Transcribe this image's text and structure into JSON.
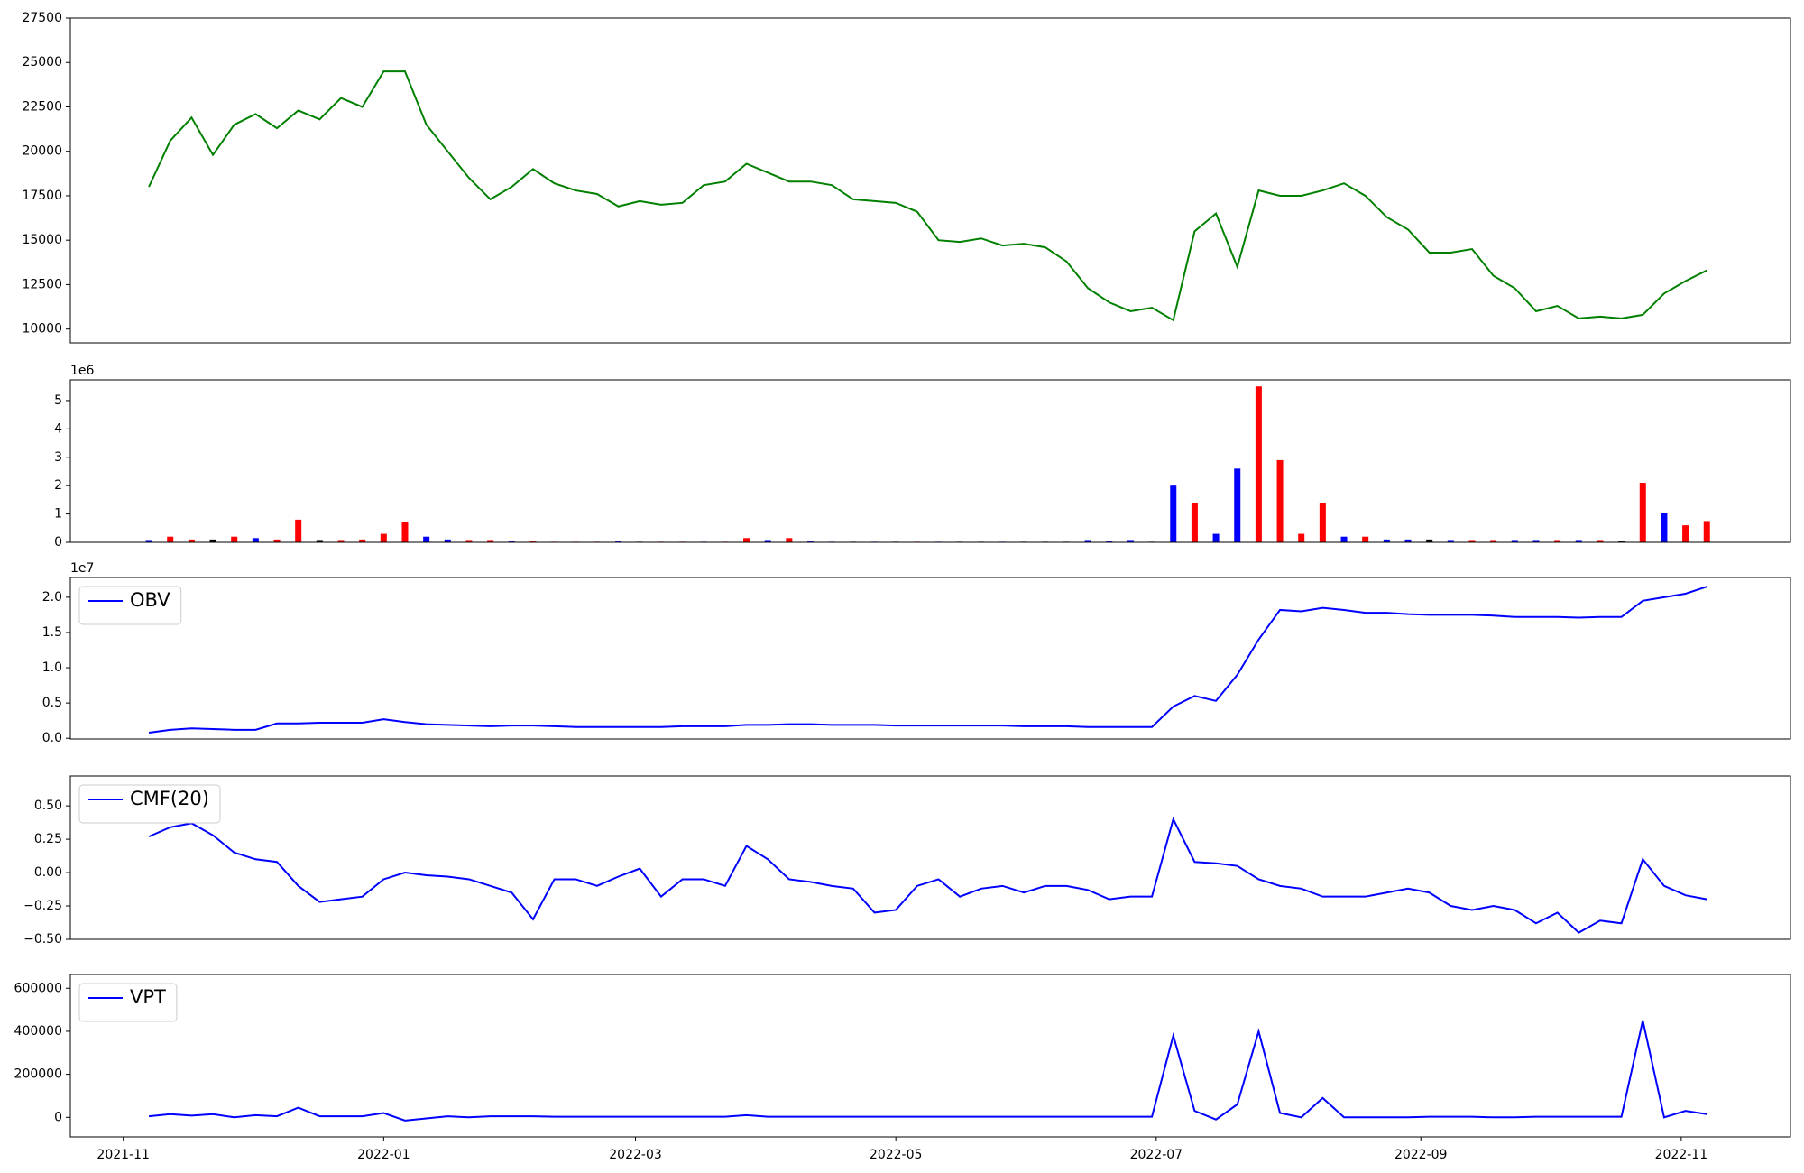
{
  "chart_data": [
    {
      "type": "line",
      "x": [
        18938,
        18943,
        18948,
        18953,
        18958,
        18963,
        18968,
        18973,
        18978,
        18983,
        18988,
        18993,
        18998,
        19003,
        19008,
        19013,
        19018,
        19023,
        19028,
        19033,
        19038,
        19043,
        19048,
        19053,
        19058,
        19063,
        19068,
        19073,
        19078,
        19083,
        19088,
        19093,
        19098,
        19103,
        19108,
        19113,
        19118,
        19123,
        19128,
        19133,
        19138,
        19143,
        19148,
        19153,
        19158,
        19163,
        19168,
        19173,
        19178,
        19183,
        19188,
        19193,
        19198,
        19203,
        19208,
        19213,
        19218,
        19223,
        19228,
        19233,
        19238,
        19243,
        19248,
        19253,
        19258,
        19263,
        19268,
        19273,
        19278,
        19283,
        19288,
        19293,
        19298,
        19303
      ],
      "series": [
        {
          "color": "#008000",
          "values": [
            18000,
            20600,
            21900,
            19800,
            21500,
            22100,
            21300,
            22300,
            21800,
            23000,
            22500,
            24500,
            24500,
            21500,
            20000,
            18500,
            17300,
            18000,
            19000,
            18200,
            17800,
            17600,
            16900,
            17200,
            17000,
            17100,
            18100,
            18300,
            19300,
            18800,
            18300,
            18300,
            18100,
            17300,
            17200,
            17100,
            16600,
            15000,
            14900,
            15100,
            14700,
            14800,
            14600,
            13800,
            12300,
            11500,
            11000,
            11200,
            10500,
            15500,
            16500,
            13500,
            17800,
            17500,
            17500,
            17800,
            18200,
            17500,
            16300,
            15600,
            14300,
            14300,
            14500,
            13000,
            12300,
            11000,
            11300,
            10600,
            10700,
            10600,
            10800,
            12000,
            12700,
            13300
          ]
        }
      ],
      "xlim": [
        18919.6,
        19322.6
      ],
      "ylim": [
        9222,
        27500
      ],
      "yticks": [
        10000,
        12500,
        15000,
        17500,
        20000,
        22500,
        25000,
        27500
      ]
    },
    {
      "type": "bar",
      "x": [
        18938,
        18943,
        18948,
        18953,
        18958,
        18963,
        18968,
        18973,
        18978,
        18983,
        18988,
        18993,
        18998,
        19003,
        19008,
        19013,
        19018,
        19023,
        19028,
        19033,
        19038,
        19043,
        19048,
        19053,
        19058,
        19063,
        19068,
        19073,
        19078,
        19083,
        19088,
        19093,
        19098,
        19103,
        19108,
        19113,
        19118,
        19123,
        19128,
        19133,
        19138,
        19143,
        19148,
        19153,
        19158,
        19163,
        19168,
        19173,
        19178,
        19183,
        19188,
        19193,
        19198,
        19203,
        19208,
        19213,
        19218,
        19223,
        19228,
        19233,
        19238,
        19243,
        19248,
        19253,
        19258,
        19263,
        19268,
        19273,
        19278,
        19283,
        19288,
        19293,
        19298,
        19303
      ],
      "values": [
        0.05,
        0.2,
        0.1,
        0.1,
        0.2,
        0.15,
        0.1,
        0.8,
        0.05,
        0.05,
        0.1,
        0.3,
        0.7,
        0.2,
        0.1,
        0.05,
        0.05,
        0.03,
        0.03,
        0.02,
        0.02,
        0.02,
        0.03,
        0.02,
        0.02,
        0.02,
        0.02,
        0.02,
        0.15,
        0.05,
        0.15,
        0.03,
        0.02,
        0.02,
        0.02,
        0.02,
        0.02,
        0.02,
        0.02,
        0.02,
        0.02,
        0.02,
        0.02,
        0.02,
        0.05,
        0.03,
        0.05,
        0.02,
        2.0,
        1.4,
        0.3,
        2.6,
        5.5,
        2.9,
        0.3,
        1.4,
        0.2,
        0.2,
        0.1,
        0.1,
        0.1,
        0.05,
        0.05,
        0.05,
        0.05,
        0.05,
        0.05,
        0.05,
        0.05,
        0.03,
        2.1,
        1.05,
        0.6,
        0.75
      ],
      "colors": [
        "blue",
        "red",
        "red",
        "black",
        "red",
        "blue",
        "red",
        "red",
        "black",
        "red",
        "red",
        "red",
        "red",
        "blue",
        "blue",
        "red",
        "red",
        "blue",
        "red",
        "red",
        "red",
        "red",
        "blue",
        "black",
        "red",
        "red",
        "blue",
        "red",
        "red",
        "blue",
        "red",
        "blue",
        "blue",
        "black",
        "blue",
        "black",
        "red",
        "blue",
        "black",
        "black",
        "blue",
        "black",
        "black",
        "black",
        "blue",
        "blue",
        "blue",
        "black",
        "blue",
        "red",
        "blue",
        "blue",
        "red",
        "red",
        "red",
        "red",
        "blue",
        "red",
        "blue",
        "blue",
        "black",
        "blue",
        "red",
        "red",
        "blue",
        "blue",
        "red",
        "blue",
        "red",
        "black",
        "red",
        "blue",
        "red",
        "red"
      ],
      "offset_label": "1e6",
      "xlim": [
        18919.6,
        19322.6
      ],
      "ylim": [
        0,
        5.73
      ],
      "yticks": [
        0,
        1,
        2,
        3,
        4,
        5
      ]
    },
    {
      "type": "line",
      "x": [
        18938,
        18943,
        18948,
        18953,
        18958,
        18963,
        18968,
        18973,
        18978,
        18983,
        18988,
        18993,
        18998,
        19003,
        19008,
        19013,
        19018,
        19023,
        19028,
        19033,
        19038,
        19043,
        19048,
        19053,
        19058,
        19063,
        19068,
        19073,
        19078,
        19083,
        19088,
        19093,
        19098,
        19103,
        19108,
        19113,
        19118,
        19123,
        19128,
        19133,
        19138,
        19143,
        19148,
        19153,
        19158,
        19163,
        19168,
        19173,
        19178,
        19183,
        19188,
        19193,
        19198,
        19203,
        19208,
        19213,
        19218,
        19223,
        19228,
        19233,
        19238,
        19243,
        19248,
        19253,
        19258,
        19263,
        19268,
        19273,
        19278,
        19283,
        19288,
        19293,
        19298,
        19303
      ],
      "series": [
        {
          "name": "OBV",
          "color": "#0000ff",
          "values": [
            0.08,
            0.12,
            0.14,
            0.13,
            0.12,
            0.12,
            0.21,
            0.21,
            0.22,
            0.22,
            0.22,
            0.27,
            0.23,
            0.2,
            0.19,
            0.18,
            0.17,
            0.18,
            0.18,
            0.17,
            0.16,
            0.16,
            0.16,
            0.16,
            0.16,
            0.17,
            0.17,
            0.17,
            0.19,
            0.19,
            0.2,
            0.2,
            0.19,
            0.19,
            0.19,
            0.18,
            0.18,
            0.18,
            0.18,
            0.18,
            0.18,
            0.17,
            0.17,
            0.17,
            0.16,
            0.16,
            0.16,
            0.16,
            0.45,
            0.6,
            0.53,
            0.9,
            1.4,
            1.82,
            1.8,
            1.85,
            1.82,
            1.78,
            1.78,
            1.76,
            1.75,
            1.75,
            1.75,
            1.74,
            1.72,
            1.72,
            1.72,
            1.71,
            1.72,
            1.72,
            1.95,
            2.0,
            2.05,
            2.15
          ]
        }
      ],
      "offset_label": "1e7",
      "xlim": [
        18919.6,
        19322.6
      ],
      "ylim": [
        -0.01,
        2.28
      ],
      "yticks": [
        {
          "value": 0,
          "label": "0.0"
        },
        0.5,
        {
          "value": 1,
          "label": "1.0"
        },
        1.5,
        {
          "value": 2,
          "label": "2.0"
        }
      ]
    },
    {
      "type": "line",
      "x": [
        18938,
        18943,
        18948,
        18953,
        18958,
        18963,
        18968,
        18973,
        18978,
        18983,
        18988,
        18993,
        18998,
        19003,
        19008,
        19013,
        19018,
        19023,
        19028,
        19033,
        19038,
        19043,
        19048,
        19053,
        19058,
        19063,
        19068,
        19073,
        19078,
        19083,
        19088,
        19093,
        19098,
        19103,
        19108,
        19113,
        19118,
        19123,
        19128,
        19133,
        19138,
        19143,
        19148,
        19153,
        19158,
        19163,
        19168,
        19173,
        19178,
        19183,
        19188,
        19193,
        19198,
        19203,
        19208,
        19213,
        19218,
        19223,
        19228,
        19233,
        19238,
        19243,
        19248,
        19253,
        19258,
        19263,
        19268,
        19273,
        19278,
        19283,
        19288,
        19293,
        19298,
        19303
      ],
      "series": [
        {
          "name": "CMF(20)",
          "color": "#0000ff",
          "values": [
            0.27,
            0.34,
            0.37,
            0.28,
            0.15,
            0.1,
            0.08,
            -0.1,
            -0.22,
            -0.2,
            -0.18,
            -0.05,
            0.0,
            -0.02,
            -0.03,
            -0.05,
            -0.1,
            -0.15,
            -0.35,
            -0.05,
            -0.05,
            -0.1,
            -0.03,
            0.03,
            -0.18,
            -0.05,
            -0.05,
            -0.1,
            0.2,
            0.1,
            -0.05,
            -0.07,
            -0.1,
            -0.12,
            -0.3,
            -0.28,
            -0.1,
            -0.05,
            -0.18,
            -0.12,
            -0.1,
            -0.15,
            -0.1,
            -0.1,
            -0.13,
            -0.2,
            -0.18,
            -0.18,
            0.4,
            0.08,
            0.07,
            0.05,
            -0.05,
            -0.1,
            -0.12,
            -0.18,
            -0.18,
            -0.18,
            -0.15,
            -0.12,
            -0.15,
            -0.25,
            -0.28,
            -0.25,
            -0.28,
            -0.38,
            -0.3,
            -0.45,
            -0.36,
            -0.38,
            0.1,
            -0.1,
            -0.17,
            -0.2
          ]
        }
      ],
      "xlim": [
        18919.6,
        19322.6
      ],
      "ylim": [
        -0.5,
        0.724
      ],
      "yticks": [
        {
          "value": -0.5,
          "label": "−0.50"
        },
        {
          "value": -0.25,
          "label": "−0.25"
        },
        {
          "value": 0,
          "label": "0.00"
        },
        {
          "value": 0.25,
          "label": "0.25"
        },
        {
          "value": 0.5,
          "label": "0.50"
        }
      ]
    },
    {
      "type": "line",
      "x": [
        18938,
        18943,
        18948,
        18953,
        18958,
        18963,
        18968,
        18973,
        18978,
        18983,
        18988,
        18993,
        18998,
        19003,
        19008,
        19013,
        19018,
        19023,
        19028,
        19033,
        19038,
        19043,
        19048,
        19053,
        19058,
        19063,
        19068,
        19073,
        19078,
        19083,
        19088,
        19093,
        19098,
        19103,
        19108,
        19113,
        19118,
        19123,
        19128,
        19133,
        19138,
        19143,
        19148,
        19153,
        19158,
        19163,
        19168,
        19173,
        19178,
        19183,
        19188,
        19193,
        19198,
        19203,
        19208,
        19213,
        19218,
        19223,
        19228,
        19233,
        19238,
        19243,
        19248,
        19253,
        19258,
        19263,
        19268,
        19273,
        19278,
        19283,
        19288,
        19293,
        19298,
        19303
      ],
      "series": [
        {
          "name": "VPT",
          "color": "#0000ff",
          "values": [
            5000,
            15000,
            8000,
            15000,
            0,
            10000,
            5000,
            45000,
            5000,
            5000,
            5000,
            20000,
            -15000,
            -5000,
            5000,
            0,
            5000,
            5000,
            5000,
            3000,
            3000,
            3000,
            3000,
            3000,
            3000,
            3000,
            3000,
            3000,
            10000,
            3000,
            3000,
            3000,
            3000,
            3000,
            3000,
            3000,
            3000,
            3000,
            3000,
            3000,
            3000,
            3000,
            3000,
            3000,
            3000,
            3000,
            3000,
            3000,
            380000,
            30000,
            -10000,
            60000,
            400000,
            20000,
            0,
            90000,
            0,
            0,
            0,
            0,
            3000,
            3000,
            3000,
            0,
            0,
            3000,
            3000,
            3000,
            3000,
            3000,
            450000,
            0,
            30000,
            15000
          ]
        }
      ],
      "xlim": [
        18919.6,
        19322.6
      ],
      "ylim": [
        -91000,
        664000
      ],
      "yticks": [
        0,
        200000,
        400000,
        600000
      ],
      "xticks": [
        {
          "value": 18932,
          "label": "2021-11"
        },
        {
          "value": 18993,
          "label": "2022-01"
        },
        {
          "value": 19052,
          "label": "2022-03"
        },
        {
          "value": 19113,
          "label": "2022-05"
        },
        {
          "value": 19174,
          "label": "2022-07"
        },
        {
          "value": 19236,
          "label": "2022-09"
        },
        {
          "value": 19297,
          "label": "2022-11"
        }
      ]
    }
  ]
}
